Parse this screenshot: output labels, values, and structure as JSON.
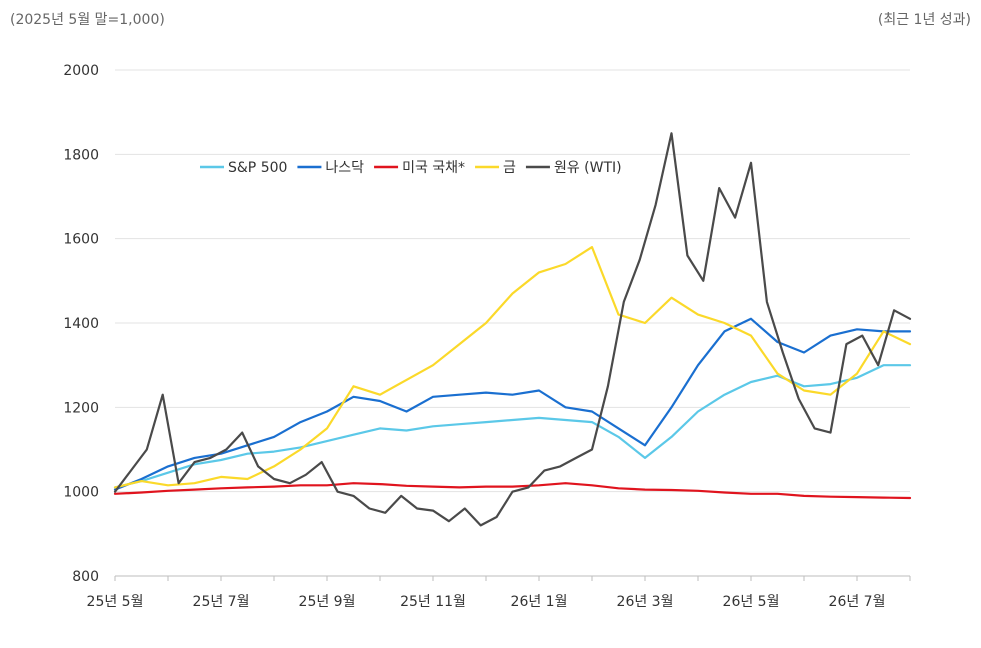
{
  "notes": {
    "left": "(2025년 5월 말=1,000)",
    "right": "(최근 1년 성과)"
  },
  "chart_data": {
    "type": "line",
    "title": "",
    "xlabel": "",
    "ylabel": "",
    "ylim": [
      800,
      2000
    ],
    "yticks": [
      800,
      1000,
      1200,
      1400,
      1600,
      1800,
      2000
    ],
    "x_ticks": [
      "25년 5월",
      "25년 7월",
      "25년 9월",
      "25년 11월",
      "26년 1월",
      "26년 3월",
      "26년 5월",
      "26년 7월"
    ],
    "x_tick_positions": [
      0,
      2,
      4,
      6,
      8,
      10,
      12,
      14
    ],
    "x_range": [
      0,
      15
    ],
    "grid": "horizontal",
    "legend_position": "top-left",
    "series": [
      {
        "name": "S&P 500",
        "color": "#5bc8e8",
        "x": [
          0,
          0.5,
          1,
          1.5,
          2,
          2.5,
          3,
          3.5,
          4,
          4.5,
          5,
          5.5,
          6,
          6.5,
          7,
          7.5,
          8,
          8.5,
          9,
          9.5,
          10,
          10.5,
          11,
          11.5,
          12,
          12.5,
          13,
          13.5,
          14,
          14.5,
          15
        ],
        "y": [
          1010,
          1025,
          1045,
          1065,
          1075,
          1090,
          1095,
          1105,
          1120,
          1135,
          1150,
          1145,
          1155,
          1160,
          1165,
          1170,
          1175,
          1170,
          1165,
          1130,
          1080,
          1130,
          1190,
          1230,
          1260,
          1275,
          1250,
          1255,
          1270,
          1300,
          1300
        ]
      },
      {
        "name": "나스닥",
        "color": "#1a6fd0",
        "x": [
          0,
          0.5,
          1,
          1.5,
          2,
          2.5,
          3,
          3.5,
          4,
          4.5,
          5,
          5.5,
          6,
          6.5,
          7,
          7.5,
          8,
          8.5,
          9,
          9.5,
          10,
          10.5,
          11,
          11.5,
          12,
          12.5,
          13,
          13.5,
          14,
          14.5,
          15
        ],
        "y": [
          1005,
          1030,
          1060,
          1080,
          1090,
          1110,
          1130,
          1165,
          1190,
          1225,
          1215,
          1190,
          1225,
          1230,
          1235,
          1230,
          1240,
          1200,
          1190,
          1150,
          1110,
          1200,
          1300,
          1380,
          1410,
          1355,
          1330,
          1370,
          1385,
          1380,
          1380
        ]
      },
      {
        "name": "미국 국채*",
        "color": "#e0141e",
        "x": [
          0,
          0.5,
          1,
          1.5,
          2,
          2.5,
          3,
          3.5,
          4,
          4.5,
          5,
          5.5,
          6,
          6.5,
          7,
          7.5,
          8,
          8.5,
          9,
          9.5,
          10,
          10.5,
          11,
          11.5,
          12,
          12.5,
          13,
          13.5,
          14,
          14.5,
          15
        ],
        "y": [
          995,
          998,
          1002,
          1005,
          1008,
          1010,
          1012,
          1015,
          1015,
          1020,
          1018,
          1014,
          1012,
          1010,
          1012,
          1012,
          1015,
          1020,
          1015,
          1008,
          1005,
          1004,
          1002,
          998,
          995,
          995,
          990,
          988,
          987,
          986,
          985
        ]
      },
      {
        "name": "금",
        "color": "#fbd92a",
        "x": [
          0,
          0.5,
          1,
          1.5,
          2,
          2.5,
          3,
          3.5,
          4,
          4.5,
          5,
          5.5,
          6,
          6.5,
          7,
          7.5,
          8,
          8.5,
          9,
          9.5,
          10,
          10.5,
          11,
          11.5,
          12,
          12.5,
          13,
          13.5,
          14,
          14.5,
          15
        ],
        "y": [
          1010,
          1025,
          1015,
          1020,
          1035,
          1030,
          1060,
          1100,
          1150,
          1250,
          1230,
          1265,
          1300,
          1350,
          1400,
          1470,
          1520,
          1540,
          1580,
          1420,
          1400,
          1460,
          1420,
          1400,
          1370,
          1280,
          1240,
          1230,
          1280,
          1380,
          1350
        ]
      },
      {
        "name": "원유 (WTI)",
        "color": "#4a4a4a",
        "x": [
          0,
          0.3,
          0.6,
          0.9,
          1.2,
          1.5,
          1.8,
          2.1,
          2.4,
          2.7,
          3.0,
          3.3,
          3.6,
          3.9,
          4.2,
          4.5,
          4.8,
          5.1,
          5.4,
          5.7,
          6.0,
          6.3,
          6.6,
          6.9,
          7.2,
          7.5,
          7.8,
          8.1,
          8.4,
          8.7,
          9.0,
          9.3,
          9.6,
          9.9,
          10.2,
          10.5,
          10.8,
          11.1,
          11.4,
          11.7,
          12.0,
          12.3,
          12.6,
          12.9,
          13.2,
          13.5,
          13.8,
          14.1,
          14.4,
          14.7,
          15.0
        ],
        "y": [
          1000,
          1050,
          1100,
          1230,
          1020,
          1070,
          1080,
          1100,
          1140,
          1060,
          1030,
          1020,
          1040,
          1070,
          1000,
          990,
          960,
          950,
          990,
          960,
          955,
          930,
          960,
          920,
          940,
          1000,
          1010,
          1050,
          1060,
          1080,
          1100,
          1250,
          1450,
          1550,
          1680,
          1850,
          1560,
          1500,
          1720,
          1650,
          1780,
          1450,
          1330,
          1220,
          1150,
          1140,
          1350,
          1370,
          1300,
          1430,
          1410
        ]
      }
    ]
  }
}
